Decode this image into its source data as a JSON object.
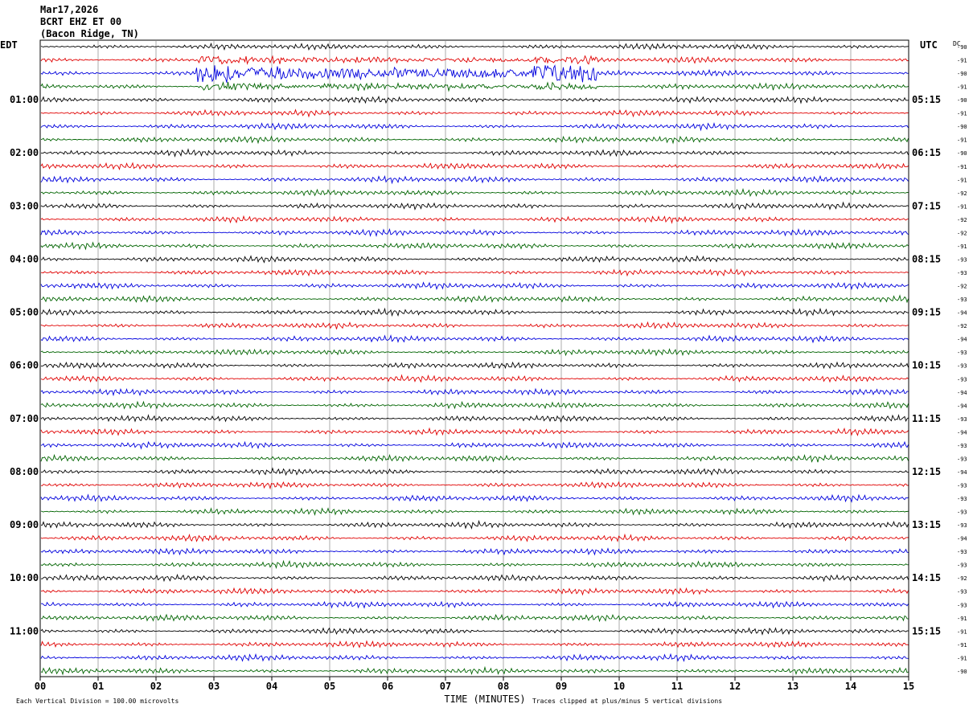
{
  "header": {
    "date": "Mar17,2026",
    "station": "BCRT EHZ ET 00",
    "location": "(Bacon Ridge, TN)"
  },
  "chart_data": {
    "type": "seismogram",
    "left_timezone": "EDT",
    "right_timezone": "UTC",
    "dc_label": "DC",
    "xlabel": "TIME (MINUTES)",
    "x_ticks": [
      "00",
      "01",
      "02",
      "03",
      "04",
      "05",
      "06",
      "07",
      "08",
      "09",
      "10",
      "11",
      "12",
      "13",
      "14",
      "15"
    ],
    "xlim": [
      0,
      15
    ],
    "trace_colors": [
      "#000000",
      "#e00000",
      "#0000dd",
      "#006400"
    ],
    "hour_labels_left": [
      "01:00",
      "02:00",
      "03:00",
      "04:00",
      "05:00",
      "06:00",
      "07:00",
      "08:00",
      "09:00",
      "10:00",
      "11:00"
    ],
    "hour_labels_right": [
      "05:15",
      "06:15",
      "07:15",
      "08:15",
      "09:15",
      "10:15",
      "11:15",
      "12:15",
      "13:15",
      "14:15",
      "15:15"
    ],
    "dc_offsets": [
      "-90",
      "-91",
      "-90",
      "-91",
      "-90",
      "-91",
      "-90",
      "-91",
      "-90",
      "-91",
      "-91",
      "-92",
      "-91",
      "-92",
      "-92",
      "-91",
      "-93",
      "-93",
      "-92",
      "-93",
      "-94",
      "-92",
      "-94",
      "-93",
      "-93",
      "-93",
      "-94",
      "-94",
      "-93",
      "-94",
      "-93",
      "-93",
      "-94",
      "-93",
      "-93",
      "-93",
      "-93",
      "-94",
      "-93",
      "-93",
      "-92",
      "-93",
      "-93",
      "-91",
      "-91",
      "-91",
      "-91",
      "-90"
    ],
    "footer_left": "Each Vertical Division =  100.00 microvolts",
    "footer_right": "Traces clipped at plus/minus 5 vertical divisions"
  }
}
